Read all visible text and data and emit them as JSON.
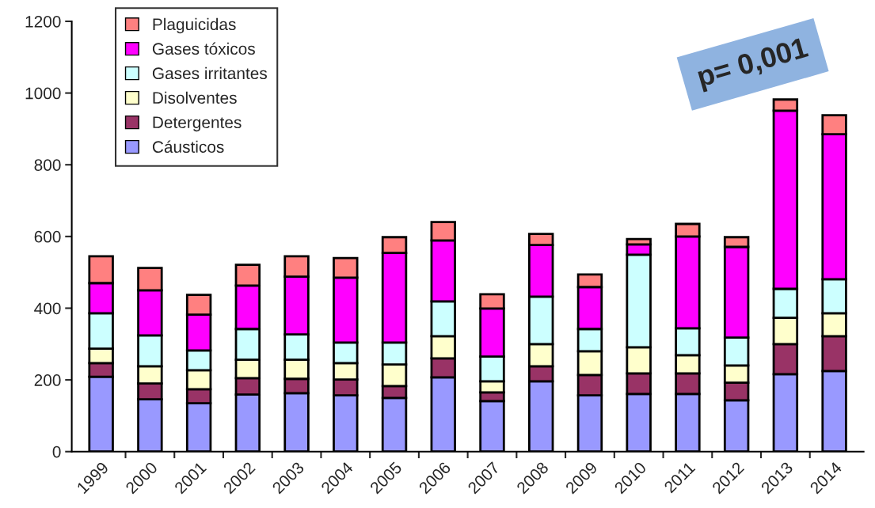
{
  "chart_data": {
    "type": "bar",
    "stacked": true,
    "categories": [
      "1999",
      "2000",
      "2001",
      "2002",
      "2003",
      "2004",
      "2005",
      "2006",
      "2007",
      "2008",
      "2009",
      "2010",
      "2011",
      "2012",
      "2013",
      "2014"
    ],
    "series": [
      {
        "name": "Cáusticos",
        "color": "#9999ff",
        "values": [
          209,
          146,
          135,
          159,
          163,
          157,
          150,
          207,
          141,
          196,
          157,
          161,
          161,
          143,
          216,
          225
        ]
      },
      {
        "name": "Detergentes",
        "color": "#993366",
        "values": [
          38,
          44,
          39,
          46,
          40,
          44,
          33,
          53,
          24,
          42,
          57,
          57,
          57,
          49,
          84,
          97
        ]
      },
      {
        "name": "Disolventes",
        "color": "#ffffcc",
        "values": [
          40,
          48,
          53,
          51,
          53,
          46,
          60,
          62,
          31,
          62,
          66,
          73,
          51,
          48,
          73,
          64
        ]
      },
      {
        "name": "Gases irritantes",
        "color": "#ccffff",
        "values": [
          99,
          86,
          55,
          86,
          71,
          57,
          61,
          97,
          69,
          132,
          62,
          258,
          75,
          78,
          81,
          95
        ]
      },
      {
        "name": "Gases tóxicos",
        "color": "#ff00ff",
        "values": [
          84,
          126,
          100,
          121,
          161,
          181,
          250,
          170,
          134,
          144,
          117,
          29,
          256,
          253,
          497,
          404
        ]
      },
      {
        "name": "Plaguicidas",
        "color": "#ff8080",
        "values": [
          75,
          62,
          55,
          58,
          57,
          55,
          44,
          51,
          40,
          31,
          35,
          15,
          35,
          27,
          31,
          53
        ]
      }
    ],
    "ylim": [
      0,
      1200
    ],
    "yticks": [
      0,
      200,
      400,
      600,
      800,
      1000,
      1200
    ],
    "annotations": [
      "p= 0,001"
    ],
    "legend": "top left",
    "grid": false
  }
}
